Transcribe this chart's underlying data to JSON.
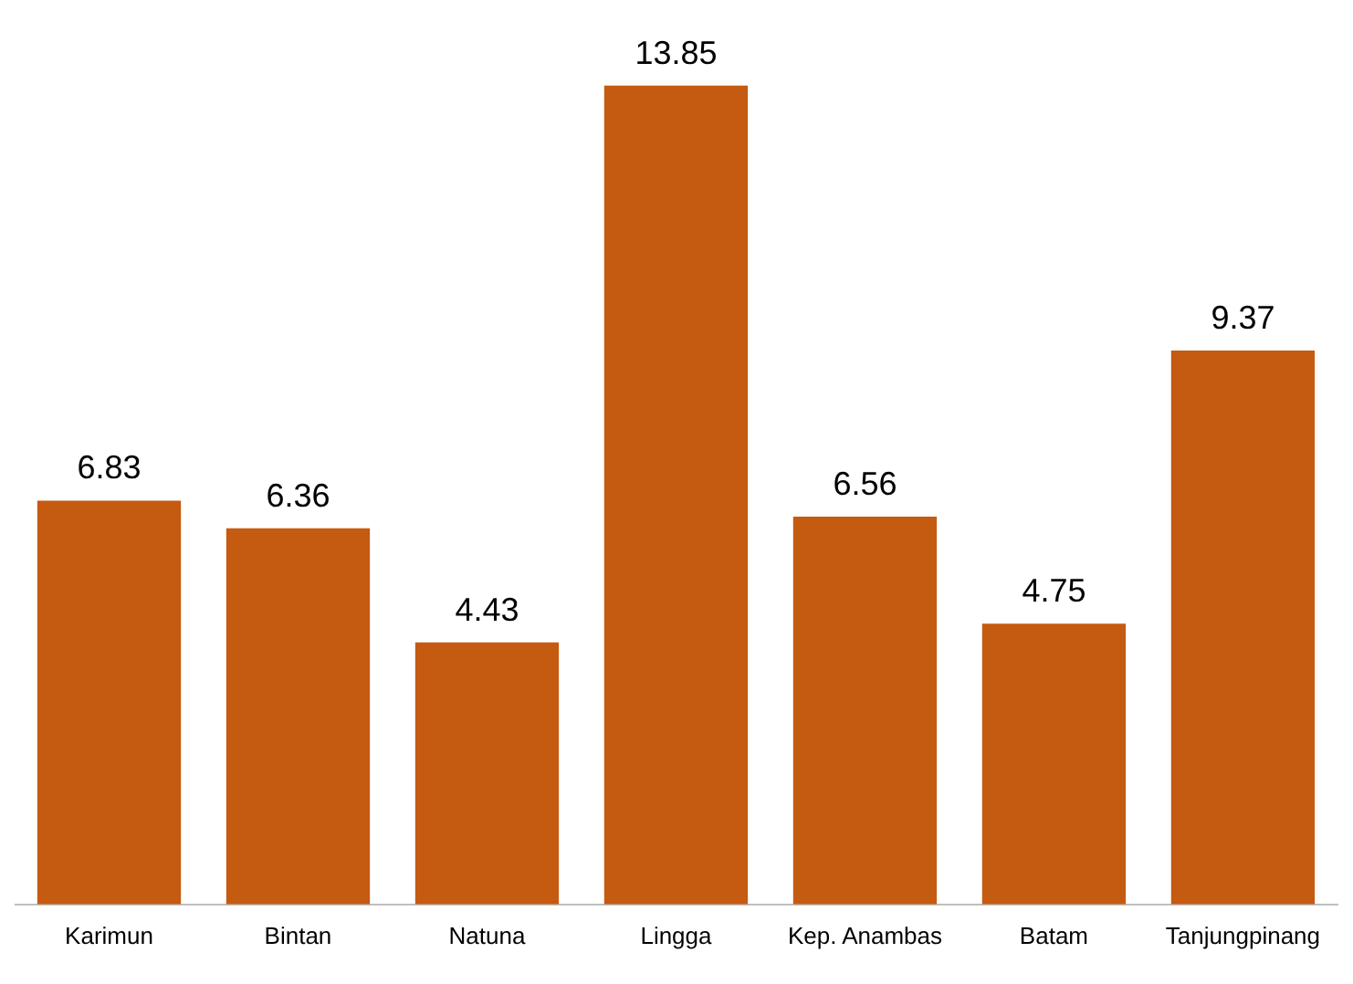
{
  "chart_data": {
    "type": "bar",
    "categories": [
      "Karimun",
      "Bintan",
      "Natuna",
      "Lingga",
      "Kep. Anambas",
      "Batam",
      "Tanjungpinang"
    ],
    "values": [
      6.83,
      6.36,
      4.43,
      13.85,
      6.56,
      4.75,
      9.37
    ],
    "color": "#c55a11",
    "data_labels": true,
    "grid": false,
    "legend": false
  }
}
